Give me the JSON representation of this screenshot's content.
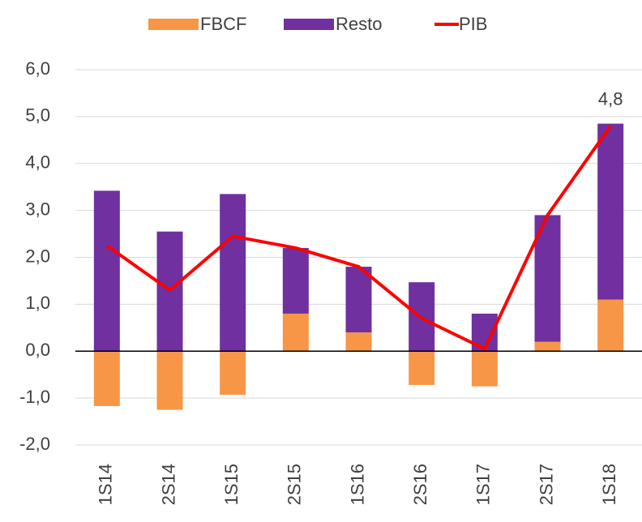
{
  "chart_data": {
    "type": "bar",
    "categories": [
      "1S14",
      "2S14",
      "1S15",
      "2S15",
      "1S16",
      "2S16",
      "1S17",
      "2S17",
      "1S18"
    ],
    "series": [
      {
        "name": "FBCF",
        "color": "#f79646",
        "type": "bar",
        "values": [
          -1.17,
          -1.25,
          -0.93,
          0.8,
          0.4,
          -0.72,
          -0.75,
          0.2,
          1.1
        ]
      },
      {
        "name": "Resto",
        "color": "#7030a0",
        "type": "bar",
        "values": [
          3.42,
          2.55,
          3.35,
          1.4,
          1.4,
          1.47,
          0.8,
          2.7,
          3.75
        ]
      },
      {
        "name": "PIB",
        "color": "#ff0000",
        "type": "line",
        "values": [
          2.25,
          1.3,
          2.45,
          2.2,
          1.8,
          0.7,
          0.05,
          2.9,
          4.8
        ],
        "value_labels": [
          null,
          null,
          null,
          null,
          null,
          null,
          null,
          null,
          "4,8"
        ]
      }
    ],
    "ylim": [
      -2,
      6
    ],
    "yticks": [
      {
        "value": -2,
        "label": "-2,0"
      },
      {
        "value": -1,
        "label": "-1,0"
      },
      {
        "value": 0,
        "label": "0,0"
      },
      {
        "value": 1,
        "label": "1,0"
      },
      {
        "value": 2,
        "label": "2,0"
      },
      {
        "value": 3,
        "label": "3,0"
      },
      {
        "value": 4,
        "label": "4,0"
      },
      {
        "value": 5,
        "label": "5,0"
      },
      {
        "value": 6,
        "label": "6,0"
      }
    ],
    "grid": true,
    "legend": "top"
  }
}
